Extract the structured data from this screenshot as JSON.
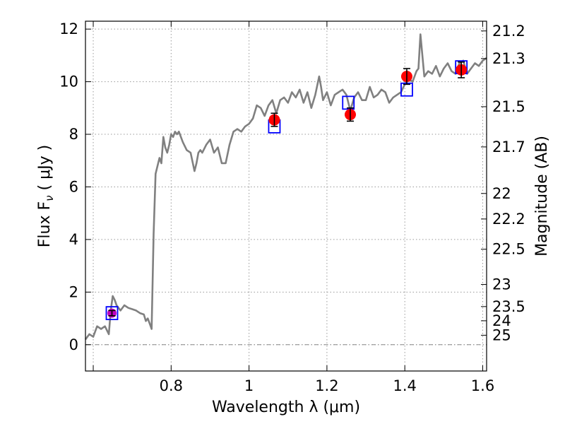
{
  "chart_data": {
    "type": "line",
    "xlabel": "Wavelength  λ (μm)",
    "ylabel": "Flux  F",
    "ylabel_sub": "ν",
    "ylabel_unit": " ( μJy )",
    "y2label": "Magnitude (AB)",
    "xlim": [
      0.58,
      1.61
    ],
    "ylim": [
      -1,
      12.3
    ],
    "x_ticks": [
      {
        "value": 0.6,
        "label": ""
      },
      {
        "value": 0.8,
        "label": "0.8"
      },
      {
        "value": 1.0,
        "label": "1"
      },
      {
        "value": 1.2,
        "label": "1.2"
      },
      {
        "value": 1.4,
        "label": "1.4"
      },
      {
        "value": 1.6,
        "label": "1.6"
      }
    ],
    "y_ticks": [
      {
        "value": 0,
        "label": "0"
      },
      {
        "value": 2,
        "label": "2"
      },
      {
        "value": 4,
        "label": "4"
      },
      {
        "value": 6,
        "label": "6"
      },
      {
        "value": 8,
        "label": "8"
      },
      {
        "value": 10,
        "label": "10"
      },
      {
        "value": 12,
        "label": "12"
      }
    ],
    "y2_ticks": [
      {
        "flux": 11.93,
        "label": "21.2"
      },
      {
        "flux": 10.88,
        "label": "21.3"
      },
      {
        "flux": 9.05,
        "label": "21.5"
      },
      {
        "flux": 7.52,
        "label": "21.7"
      },
      {
        "flux": 5.75,
        "label": "22"
      },
      {
        "flux": 4.78,
        "label": "22.2"
      },
      {
        "flux": 3.63,
        "label": "22.5"
      },
      {
        "flux": 2.29,
        "label": "23"
      },
      {
        "flux": 1.45,
        "label": "23.5"
      },
      {
        "flux": 0.91,
        "label": "24"
      },
      {
        "flux": 0.36,
        "label": "25"
      }
    ],
    "grid": true,
    "series": [
      {
        "color": "#808080",
        "x": [
          0.58,
          0.59,
          0.6,
          0.61,
          0.62,
          0.63,
          0.64,
          0.645,
          0.65,
          0.655,
          0.66,
          0.67,
          0.68,
          0.69,
          0.7,
          0.71,
          0.72,
          0.73,
          0.735,
          0.74,
          0.745,
          0.75,
          0.755,
          0.76,
          0.77,
          0.775,
          0.78,
          0.785,
          0.79,
          0.795,
          0.8,
          0.805,
          0.81,
          0.815,
          0.82,
          0.83,
          0.84,
          0.85,
          0.86,
          0.865,
          0.87,
          0.875,
          0.88,
          0.89,
          0.9,
          0.91,
          0.92,
          0.93,
          0.94,
          0.95,
          0.96,
          0.97,
          0.98,
          0.99,
          1.0,
          1.01,
          1.02,
          1.03,
          1.04,
          1.05,
          1.06,
          1.07,
          1.08,
          1.09,
          1.1,
          1.11,
          1.12,
          1.13,
          1.14,
          1.15,
          1.16,
          1.17,
          1.18,
          1.185,
          1.19,
          1.2,
          1.21,
          1.22,
          1.23,
          1.24,
          1.25,
          1.26,
          1.27,
          1.28,
          1.29,
          1.3,
          1.31,
          1.32,
          1.33,
          1.34,
          1.35,
          1.36,
          1.37,
          1.38,
          1.39,
          1.4,
          1.41,
          1.42,
          1.43,
          1.435,
          1.44,
          1.45,
          1.46,
          1.47,
          1.48,
          1.49,
          1.5,
          1.51,
          1.52,
          1.53,
          1.54,
          1.55,
          1.56,
          1.57,
          1.58,
          1.59,
          1.6,
          1.61
        ],
        "y": [
          0.2,
          0.4,
          0.3,
          0.7,
          0.6,
          0.7,
          0.4,
          1.3,
          1.85,
          1.7,
          1.5,
          1.3,
          1.5,
          1.4,
          1.35,
          1.3,
          1.2,
          1.15,
          0.9,
          1.0,
          0.8,
          0.6,
          4.2,
          6.5,
          7.1,
          6.9,
          7.9,
          7.5,
          7.3,
          7.6,
          8.0,
          7.9,
          8.1,
          8.0,
          8.1,
          7.7,
          7.4,
          7.3,
          6.6,
          6.9,
          7.3,
          7.4,
          7.3,
          7.6,
          7.8,
          7.3,
          7.5,
          6.9,
          6.9,
          7.6,
          8.1,
          8.2,
          8.1,
          8.3,
          8.4,
          8.6,
          9.1,
          9.0,
          8.7,
          9.1,
          9.3,
          8.8,
          9.3,
          9.4,
          9.2,
          9.6,
          9.4,
          9.7,
          9.2,
          9.6,
          9.0,
          9.5,
          10.2,
          9.8,
          9.3,
          9.6,
          9.1,
          9.5,
          9.6,
          9.7,
          9.5,
          8.9,
          9.4,
          9.6,
          9.3,
          9.3,
          9.8,
          9.4,
          9.5,
          9.7,
          9.6,
          9.2,
          9.4,
          9.5,
          9.6,
          9.9,
          10.1,
          10.0,
          10.4,
          10.5,
          11.8,
          10.2,
          10.4,
          10.3,
          10.6,
          10.2,
          10.5,
          10.7,
          10.4,
          10.3,
          10.7,
          10.8,
          10.3,
          10.5,
          10.7,
          10.6,
          10.8,
          10.9
        ]
      }
    ],
    "model_points": [
      {
        "x": 0.648,
        "y": 1.2,
        "color": "#0000ff"
      },
      {
        "x": 1.065,
        "y": 8.3,
        "color": "#0000ff"
      },
      {
        "x": 1.255,
        "y": 9.2,
        "color": "#0000ff"
      },
      {
        "x": 1.405,
        "y": 9.7,
        "color": "#0000ff"
      },
      {
        "x": 1.545,
        "y": 10.55,
        "color": "#0000ff"
      }
    ],
    "observed_points": [
      {
        "x": 0.648,
        "y": 1.2,
        "err": 0.1,
        "color": "#c000c0"
      },
      {
        "x": 1.065,
        "y": 8.55,
        "err": 0.25,
        "color": "#ff0000"
      },
      {
        "x": 1.26,
        "y": 8.75,
        "err": 0.25,
        "color": "#ff0000"
      },
      {
        "x": 1.405,
        "y": 10.2,
        "err": 0.3,
        "color": "#ff0000"
      },
      {
        "x": 1.545,
        "y": 10.45,
        "err": 0.3,
        "color": "#ff0000"
      }
    ]
  }
}
